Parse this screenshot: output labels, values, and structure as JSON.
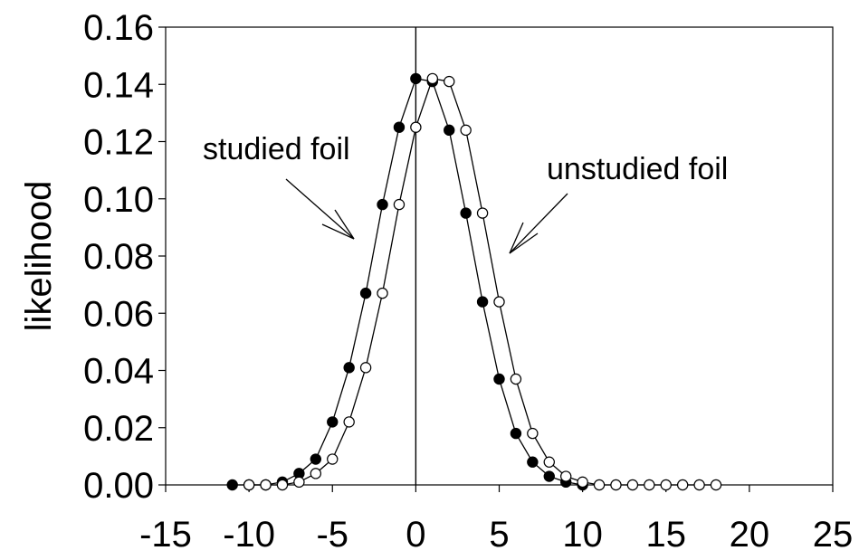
{
  "chart_data": {
    "type": "scatter",
    "title": "",
    "xlabel": "",
    "ylabel": "likelihood",
    "xlim": [
      -15,
      25
    ],
    "ylim": [
      0,
      0.16
    ],
    "xticks": [
      "-15",
      "-10",
      "-5",
      "0",
      "5",
      "10",
      "15",
      "20",
      "25"
    ],
    "yticks": [
      "0.00",
      "0.02",
      "0.04",
      "0.06",
      "0.08",
      "0.10",
      "0.12",
      "0.14",
      "0.16"
    ],
    "grid": false,
    "vertical_line_x": 0,
    "annotations": [
      {
        "text": "studied foil",
        "series": "studied foil"
      },
      {
        "text": "unstudied foil",
        "series": "unstudied foil"
      }
    ],
    "series": [
      {
        "name": "studied foil",
        "marker": "filled",
        "x": [
          -11,
          -10,
          -9,
          -8,
          -7,
          -6,
          -5,
          -4,
          -3,
          -2,
          -1,
          0,
          1,
          2,
          3,
          4,
          5,
          6,
          7,
          8,
          9,
          10
        ],
        "y": [
          0.0,
          0.0,
          0.0,
          0.001,
          0.004,
          0.009,
          0.022,
          0.041,
          0.067,
          0.098,
          0.125,
          0.142,
          0.141,
          0.124,
          0.095,
          0.064,
          0.037,
          0.018,
          0.008,
          0.003,
          0.001,
          0.0
        ]
      },
      {
        "name": "unstudied foil",
        "marker": "open",
        "x": [
          -10,
          -9,
          -8,
          -7,
          -6,
          -5,
          -4,
          -3,
          -2,
          -1,
          0,
          1,
          2,
          3,
          4,
          5,
          6,
          7,
          8,
          9,
          10,
          11,
          12,
          13,
          14,
          15,
          16,
          17,
          18
        ],
        "y": [
          0.0,
          0.0,
          0.0,
          0.001,
          0.004,
          0.009,
          0.022,
          0.041,
          0.067,
          0.098,
          0.125,
          0.142,
          0.141,
          0.124,
          0.095,
          0.064,
          0.037,
          0.018,
          0.008,
          0.003,
          0.001,
          0.0,
          0.0,
          0.0,
          0.0,
          0.0,
          0.0,
          0.0,
          0.0
        ]
      }
    ],
    "colors": {
      "line": "#000000",
      "filled_marker": "#000000",
      "open_marker_fill": "#ffffff"
    }
  }
}
